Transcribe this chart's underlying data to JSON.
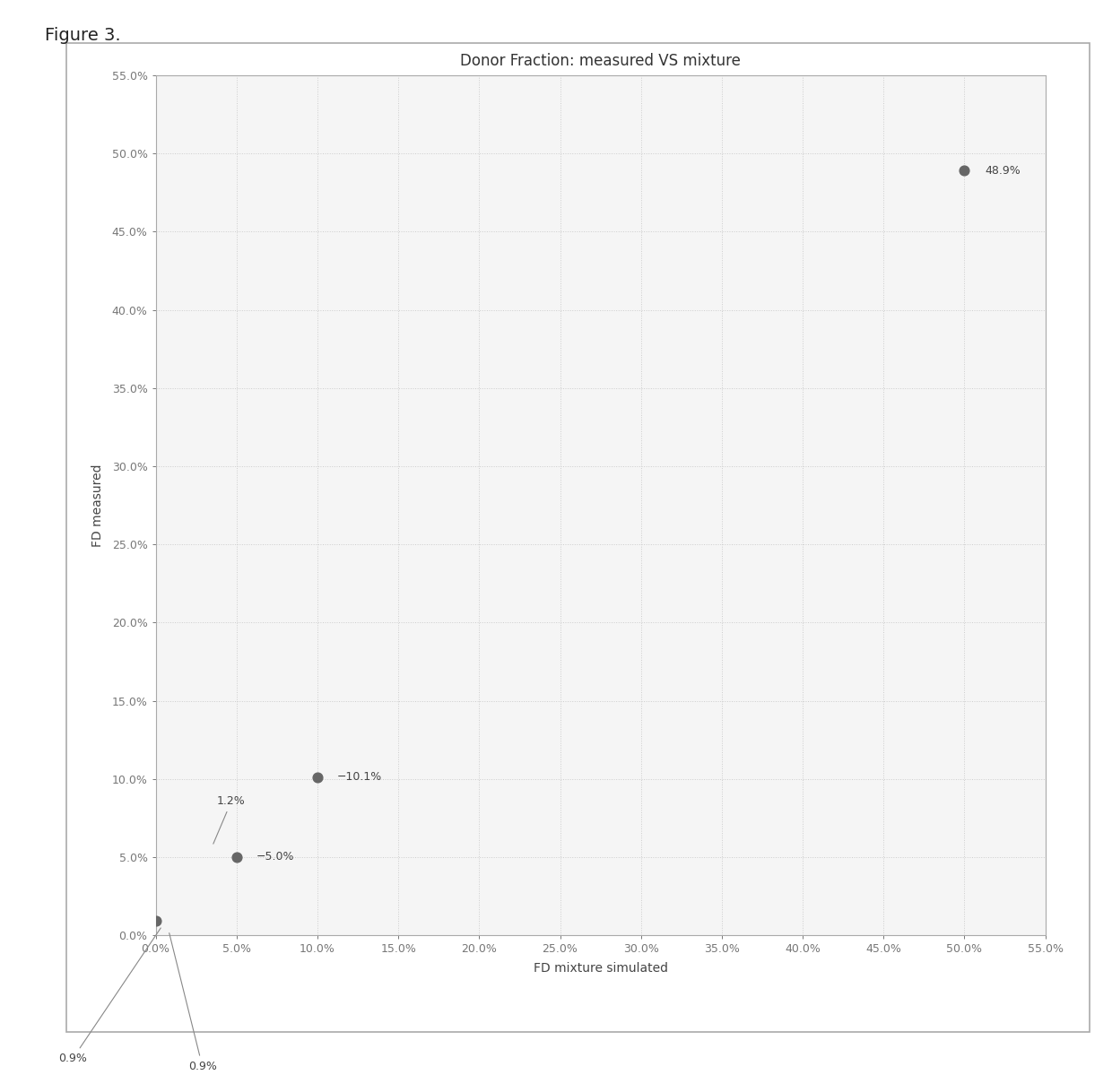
{
  "title": "Donor Fraction: measured VS mixture",
  "xlabel": "FD mixture simulated",
  "ylabel": "FD measured",
  "figure_label": "Figure 3.",
  "xlim": [
    0,
    0.55
  ],
  "ylim": [
    0,
    0.55
  ],
  "xticks": [
    0.0,
    0.05,
    0.1,
    0.15,
    0.2,
    0.25,
    0.3,
    0.35,
    0.4,
    0.45,
    0.5,
    0.55
  ],
  "yticks": [
    0.0,
    0.05,
    0.1,
    0.15,
    0.2,
    0.25,
    0.3,
    0.35,
    0.4,
    0.45,
    0.5,
    0.55
  ],
  "tick_labels": [
    "0.0%",
    "5.0%",
    "10.0%",
    "15.0%",
    "20.0%",
    "25.0%",
    "30.0%",
    "35.0%",
    "40.0%",
    "45.0%",
    "50.0%",
    "55.0%"
  ],
  "points_x": [
    0.0,
    0.05,
    0.1,
    0.5
  ],
  "points_y": [
    0.009,
    0.05,
    0.101,
    0.489
  ],
  "marker_size": 60,
  "marker_color": "#666666",
  "grid_color": "#cccccc",
  "grid_linestyle": ":",
  "plot_bg_color": "#f5f5f5",
  "outer_bg_color": "#ffffff",
  "chart_box_color": "#aaaaaa",
  "title_fontsize": 12,
  "label_fontsize": 10,
  "tick_fontsize": 9,
  "annot_fontsize": 9,
  "fig_label_fontsize": 14
}
